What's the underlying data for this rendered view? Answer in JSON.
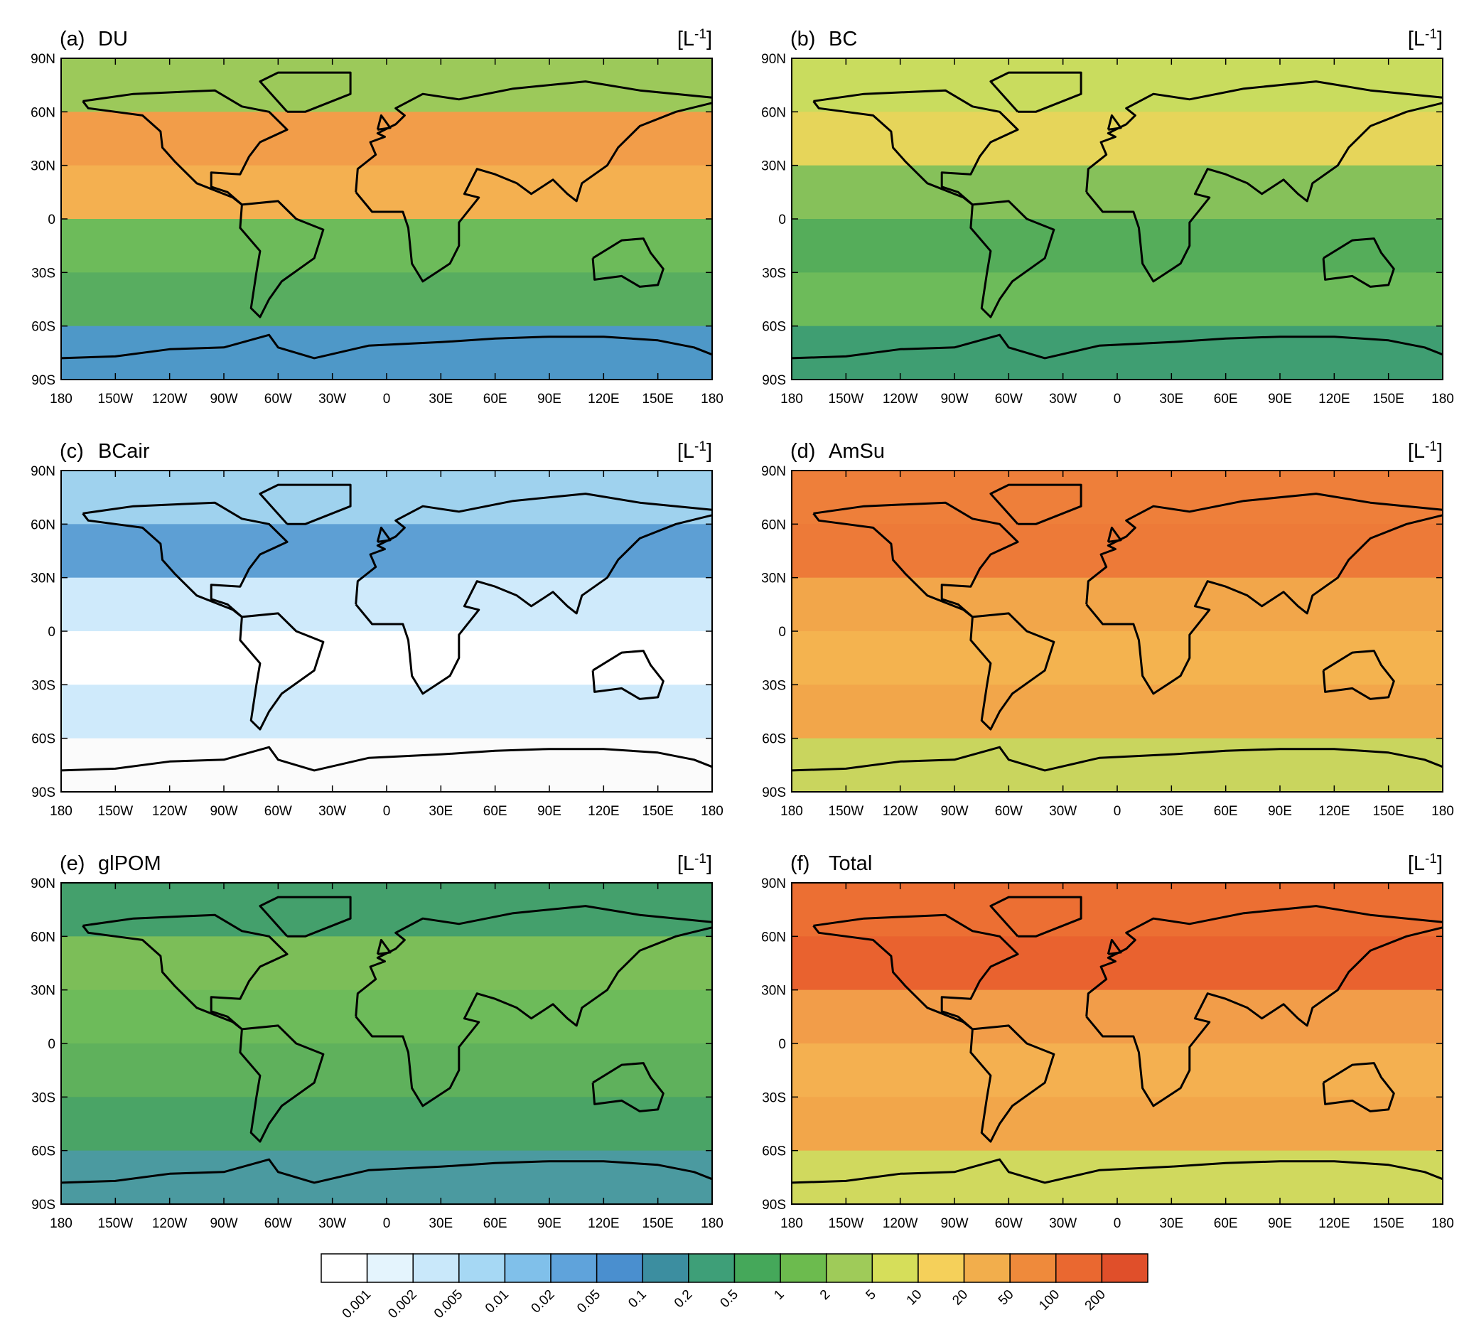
{
  "panels": [
    {
      "label": "(a)",
      "name": "DU",
      "unit_open": "[L",
      "unit_exponent": "-1",
      "unit_close": "]"
    },
    {
      "label": "(b)",
      "name": "BC",
      "unit_open": "[L",
      "unit_exponent": "-1",
      "unit_close": "]"
    },
    {
      "label": "(c)",
      "name": "BCair",
      "unit_open": "[L",
      "unit_exponent": "-1",
      "unit_close": "]"
    },
    {
      "label": "(d)",
      "name": "AmSu",
      "unit_open": "[L",
      "unit_exponent": "-1",
      "unit_close": "]"
    },
    {
      "label": "(e)",
      "name": "glPOM",
      "unit_open": "[L",
      "unit_exponent": "-1",
      "unit_close": "]"
    },
    {
      "label": "(f)",
      "name": "Total",
      "unit_open": "[L",
      "unit_exponent": "-1",
      "unit_close": "]"
    }
  ],
  "lon_ticks": [
    {
      "value": -180,
      "label": "180"
    },
    {
      "value": -150,
      "label": "150W"
    },
    {
      "value": -120,
      "label": "120W"
    },
    {
      "value": -90,
      "label": "90W"
    },
    {
      "value": -60,
      "label": "60W"
    },
    {
      "value": -30,
      "label": "30W"
    },
    {
      "value": 0,
      "label": "0"
    },
    {
      "value": 30,
      "label": "30E"
    },
    {
      "value": 60,
      "label": "60E"
    },
    {
      "value": 90,
      "label": "90E"
    },
    {
      "value": 120,
      "label": "120E"
    },
    {
      "value": 150,
      "label": "150E"
    },
    {
      "value": 180,
      "label": "180"
    }
  ],
  "lat_ticks": [
    {
      "value": 90,
      "label": "90N"
    },
    {
      "value": 60,
      "label": "60N"
    },
    {
      "value": 30,
      "label": "30N"
    },
    {
      "value": 0,
      "label": "0"
    },
    {
      "value": -30,
      "label": "30S"
    },
    {
      "value": -60,
      "label": "60S"
    },
    {
      "value": -90,
      "label": "90S"
    }
  ],
  "colorbar": {
    "levels": [
      0.001,
      0.002,
      0.005,
      0.01,
      0.02,
      0.05,
      0.1,
      0.2,
      0.5,
      1,
      2,
      5,
      10,
      20,
      50,
      100,
      200
    ],
    "colors": [
      "#ffffff",
      "#e4f4fd",
      "#c9e8fa",
      "#a6d8f4",
      "#80c0ea",
      "#5fa3db",
      "#4a8fcf",
      "#3c8ea0",
      "#3e9f78",
      "#45a85a",
      "#6cbb4e",
      "#9fcb59",
      "#d6de5a",
      "#f5d05a",
      "#f2ae4c",
      "#ef8a3b",
      "#ea6830",
      "#e04f2a"
    ]
  }
}
